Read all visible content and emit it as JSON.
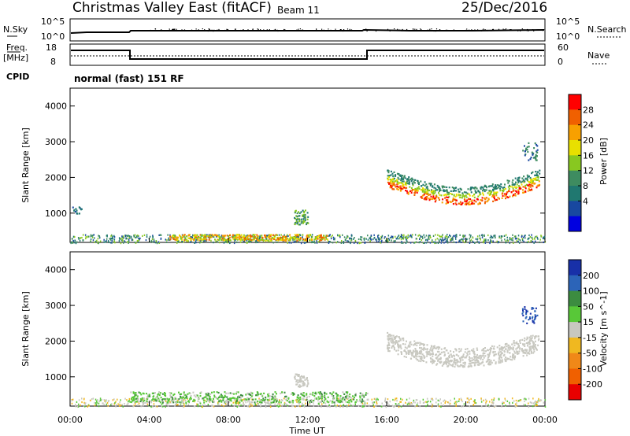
{
  "header": {
    "radar": "Christmas Valley East (fitACF)",
    "beam": "Beam 11",
    "date": "25/Dec/2016"
  },
  "panels": {
    "nsky_label": "N.Sky",
    "nsky_ticks": [
      "10^5",
      "10^0"
    ],
    "nsearch_label": "N.Search",
    "nsearch_ticks": [
      "10^5",
      "10^0"
    ],
    "freq_label_1": "Freq.",
    "freq_label_2": "[MHz]",
    "freq_ticks": [
      "18",
      "8"
    ],
    "nave_label": "Nave",
    "nave_ticks": [
      "60",
      "0"
    ],
    "cpid_label": "CPID",
    "cpid_text": "normal (fast) 151 RF"
  },
  "chart_data": [
    {
      "type": "heatmap",
      "name": "power",
      "ylabel": "Slant Range [km]",
      "yticks": [
        "4000",
        "3000",
        "2000",
        "1000"
      ],
      "ylim": [
        180,
        4500
      ],
      "colorbar_label": "Power [dB]",
      "colorbar_ticks": [
        "28",
        "24",
        "20",
        "16",
        "12",
        "8",
        "4"
      ],
      "colorbar_colors": [
        "#ff0000",
        "#f06000",
        "#f8a000",
        "#e8e000",
        "#88c820",
        "#3e8c60",
        "#207870",
        "#1848a0",
        "#0000e0"
      ],
      "x_ticks": [
        "00:00",
        "04:00",
        "08:00",
        "12:00",
        "16:00",
        "20:00",
        "00:00"
      ]
    },
    {
      "type": "heatmap",
      "name": "velocity",
      "ylabel": "Slant Range [km]",
      "yticks": [
        "4000",
        "3000",
        "2000",
        "1000"
      ],
      "ylim": [
        180,
        4500
      ],
      "colorbar_label": "Velocity [m s^-1]",
      "colorbar_ticks": [
        "200",
        "100",
        "50",
        "15",
        "-15",
        "-50",
        "-100",
        "-200"
      ],
      "colorbar_colors": [
        "#1830a8",
        "#2c64b8",
        "#3c8c40",
        "#58c838",
        "#c8c8c0",
        "#f0b820",
        "#f08818",
        "#f06000",
        "#e80000"
      ],
      "x_ticks": [
        "00:00",
        "04:00",
        "08:00",
        "12:00",
        "16:00",
        "20:00",
        "00:00"
      ],
      "xlabel": "Time UT"
    }
  ]
}
